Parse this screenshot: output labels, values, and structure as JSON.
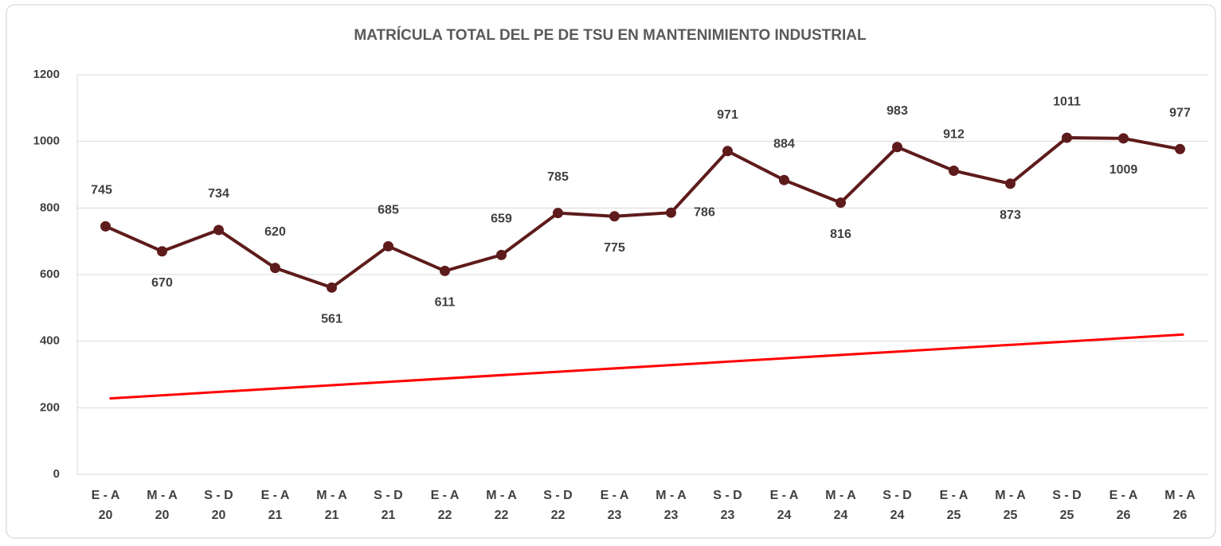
{
  "chart_data": {
    "type": "line",
    "title": "MATRÍCULA TOTAL DEL PE DE TSU EN MANTENIMIENTO INDUSTRIAL",
    "categories": [
      [
        "E - A",
        "20"
      ],
      [
        "M - A",
        "20"
      ],
      [
        "S - D",
        "20"
      ],
      [
        "E - A",
        "21"
      ],
      [
        "M - A",
        "21"
      ],
      [
        "S - D",
        "21"
      ],
      [
        "E - A",
        "22"
      ],
      [
        "M - A",
        "22"
      ],
      [
        "S - D",
        "22"
      ],
      [
        "E - A",
        "23"
      ],
      [
        "M - A",
        "23"
      ],
      [
        "S - D",
        "23"
      ],
      [
        "E - A",
        "24"
      ],
      [
        "M - A",
        "24"
      ],
      [
        "S - D",
        "24"
      ],
      [
        "E - A",
        "25"
      ],
      [
        "M - A",
        "25"
      ],
      [
        "S - D",
        "25"
      ],
      [
        "E - A",
        "26"
      ],
      [
        "M - A",
        "26"
      ]
    ],
    "values": [
      745,
      670,
      734,
      620,
      561,
      685,
      611,
      659,
      785,
      775,
      786,
      971,
      884,
      816,
      983,
      912,
      873,
      1011,
      1009,
      977
    ],
    "color": "#5e1b1b",
    "trendline": {
      "color": "#ff0000",
      "start": 228,
      "end": 420
    },
    "ylim": [
      0,
      1200
    ],
    "yticks": [
      0,
      200,
      400,
      600,
      800,
      1000,
      1200
    ],
    "grid": true
  }
}
